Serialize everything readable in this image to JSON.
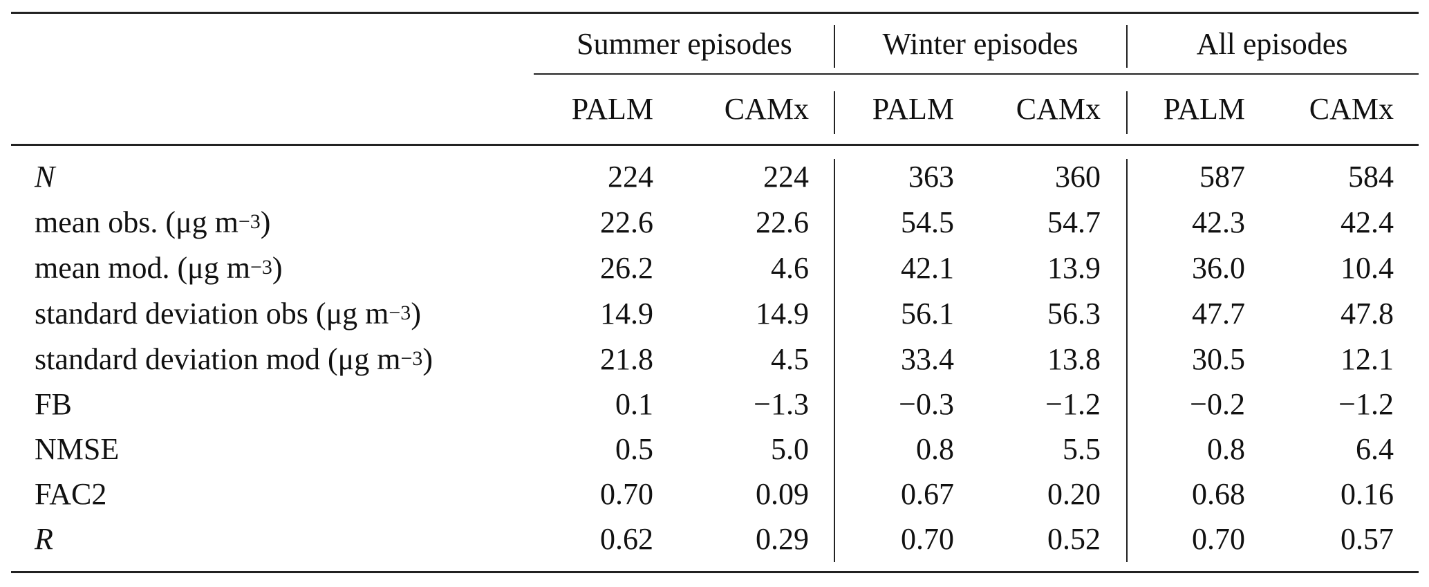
{
  "header": {
    "groups": [
      "Summer episodes",
      "Winter episodes",
      "All episodes"
    ],
    "subcolumns": [
      "PALM",
      "CAMx",
      "PALM",
      "CAMx",
      "PALM",
      "CAMx"
    ]
  },
  "rows": [
    {
      "label": "N",
      "italic": true,
      "values": [
        "224",
        "224",
        "363",
        "360",
        "587",
        "584"
      ]
    },
    {
      "label": "mean obs. (μg m",
      "unit_exp": "−3",
      "label_tail": ")",
      "values": [
        "22.6",
        "22.6",
        "54.5",
        "54.7",
        "42.3",
        "42.4"
      ]
    },
    {
      "label": "mean mod. (μg m",
      "unit_exp": "−3",
      "label_tail": ")",
      "values": [
        "26.2",
        "4.6",
        "42.1",
        "13.9",
        "36.0",
        "10.4"
      ]
    },
    {
      "label": "standard deviation obs (μg m",
      "unit_exp": "−3",
      "label_tail": ")",
      "values": [
        "14.9",
        "14.9",
        "56.1",
        "56.3",
        "47.7",
        "47.8"
      ]
    },
    {
      "label": "standard deviation mod (μg m",
      "unit_exp": "−3",
      "label_tail": ")",
      "values": [
        "21.8",
        "4.5",
        "33.4",
        "13.8",
        "30.5",
        "12.1"
      ]
    },
    {
      "label": "FB",
      "values": [
        "0.1",
        "−1.3",
        "−0.3",
        "−1.2",
        "−0.2",
        "−1.2"
      ]
    },
    {
      "label": "NMSE",
      "values": [
        "0.5",
        "5.0",
        "0.8",
        "5.5",
        "0.8",
        "6.4"
      ]
    },
    {
      "label": "FAC2",
      "values": [
        "0.70",
        "0.09",
        "0.67",
        "0.20",
        "0.68",
        "0.16"
      ]
    },
    {
      "label": "R",
      "italic": true,
      "values": [
        "0.62",
        "0.29",
        "0.70",
        "0.52",
        "0.70",
        "0.57"
      ]
    }
  ]
}
